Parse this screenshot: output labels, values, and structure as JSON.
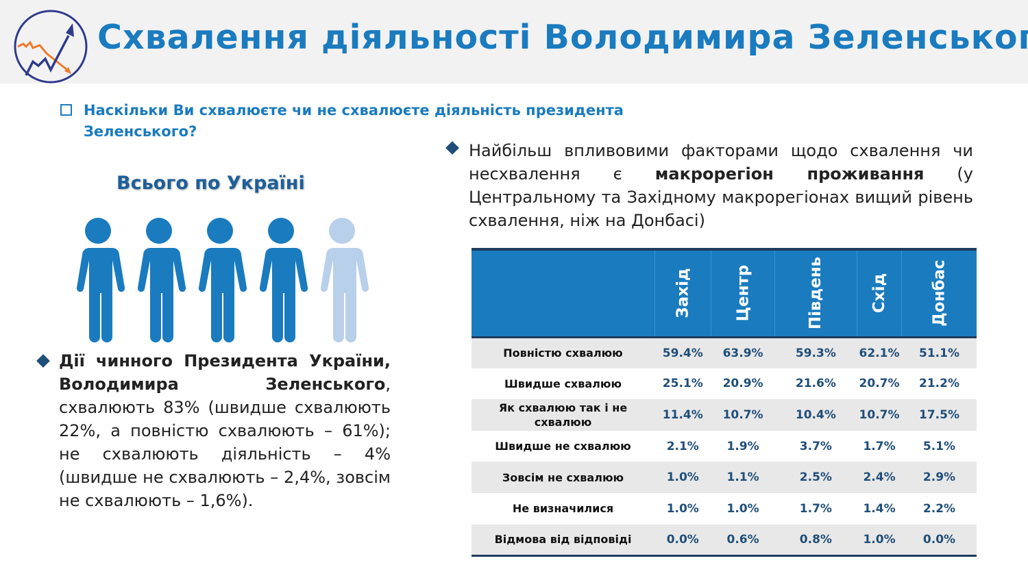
{
  "header": {
    "title": "Схвалення діяльності Володимира Зеленського"
  },
  "question": "Наскільки Ви схвалюєте чи не схвалюєте діяльність президента Зеленського?",
  "subtitle": "Всього по Україні",
  "people": {
    "filled": 4,
    "total": 5,
    "colors": {
      "filled": "#1a7bbf",
      "empty": "#b9d0ea"
    }
  },
  "left_text": {
    "bold": "Дії чинного Президента України, Володимира Зеленського",
    "rest": ", схвалюють 83% (швидше схвалюють 22%, а повністю схвалюють – 61%); не схвалюють діяльність – 4% (швидше не схвалюють – 2,4%, зовсім не схвалюють – 1,6%)."
  },
  "right_text": {
    "before": "Найбільш впливовими факторами щодо схвалення чи несхвалення є ",
    "bold": "макрорегіон проживання",
    "after": " (у Центральному та Західному макрорегіонах вищий рівень схвалення, ніж на Донбасі)"
  },
  "table": {
    "columns": [
      "Захід",
      "Центр",
      "Південь",
      "Схід",
      "Донбас"
    ],
    "rows": [
      {
        "label": "Повністю схвалюю",
        "values": [
          "59.4%",
          "63.9%",
          "59.3%",
          "62.1%",
          "51.1%"
        ]
      },
      {
        "label": "Швидше схвалюю",
        "values": [
          "25.1%",
          "20.9%",
          "21.6%",
          "20.7%",
          "21.2%"
        ]
      },
      {
        "label": "Як схвалюю так і не схвалюю",
        "values": [
          "11.4%",
          "10.7%",
          "10.4%",
          "10.7%",
          "17.5%"
        ]
      },
      {
        "label": "Швидше не схвалюю",
        "values": [
          "2.1%",
          "1.9%",
          "3.7%",
          "1.7%",
          "5.1%"
        ]
      },
      {
        "label": "Зовсім не схвалюю",
        "values": [
          "1.0%",
          "1.1%",
          "2.5%",
          "2.4%",
          "2.9%"
        ]
      },
      {
        "label": "Не визначилися",
        "values": [
          "1.0%",
          "1.0%",
          "1.7%",
          "1.4%",
          "2.2%"
        ]
      },
      {
        "label": "Відмова від відповіді",
        "values": [
          "0.0%",
          "0.6%",
          "0.8%",
          "1.0%",
          "0.0%"
        ]
      }
    ]
  }
}
